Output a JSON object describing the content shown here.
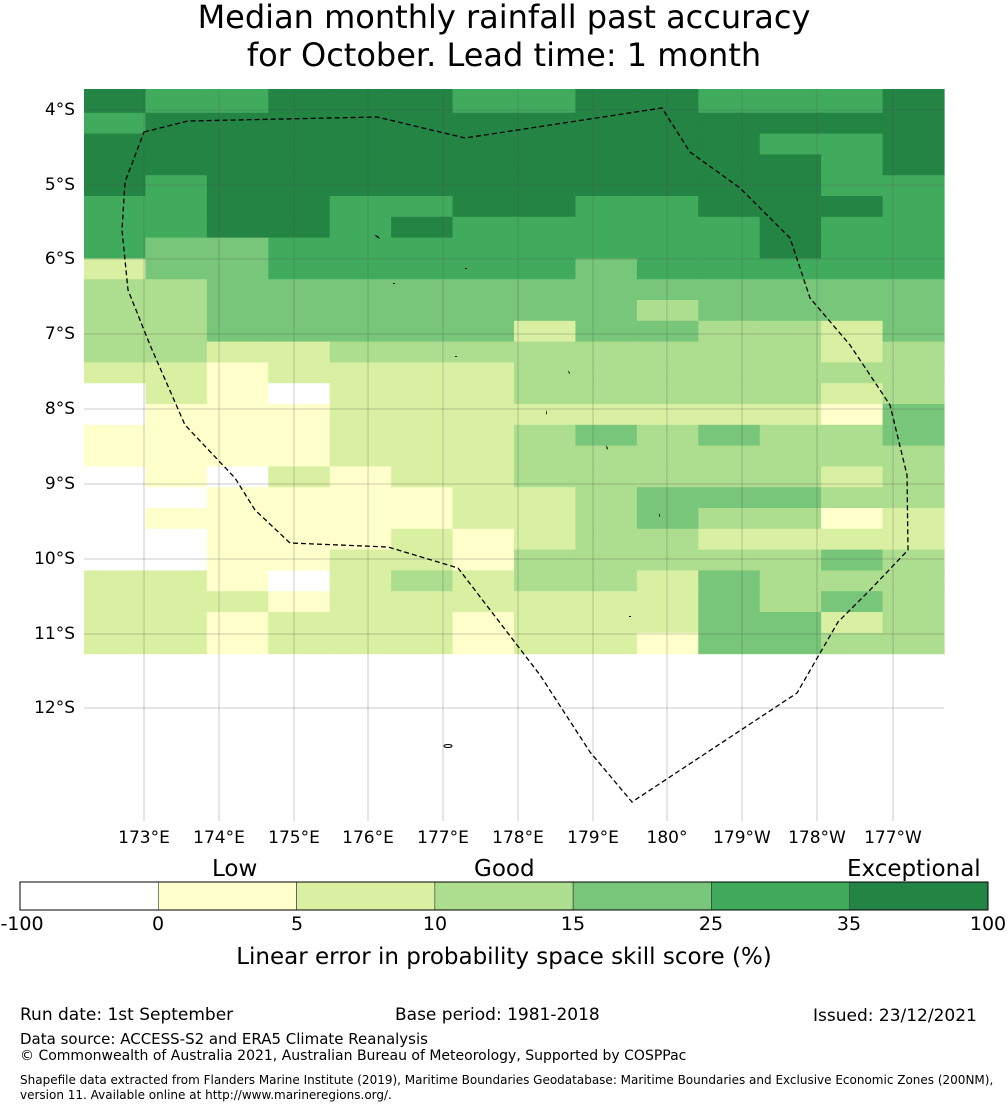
{
  "title": {
    "line1": "Median monthly rainfall past accuracy",
    "line2": "for October. Lead time: 1 month"
  },
  "map": {
    "lat_labels": [
      "4°S",
      "5°S",
      "6°S",
      "7°S",
      "8°S",
      "9°S",
      "10°S",
      "11°S",
      "12°S"
    ],
    "lon_labels": [
      "173°E",
      "174°E",
      "175°E",
      "176°E",
      "177°E",
      "178°E",
      "179°E",
      "180°",
      "179°W",
      "178°W",
      "177°W"
    ],
    "grid": [
      [
        6,
        5,
        5,
        6,
        6,
        6,
        5,
        5,
        6,
        6,
        5,
        5,
        5,
        6
      ],
      [
        5,
        6,
        6,
        6,
        6,
        6,
        6,
        6,
        6,
        6,
        6,
        6,
        6,
        6
      ],
      [
        6,
        6,
        6,
        6,
        6,
        6,
        6,
        6,
        6,
        6,
        6,
        5,
        5,
        6
      ],
      [
        6,
        6,
        6,
        6,
        6,
        6,
        6,
        6,
        6,
        6,
        6,
        6,
        5,
        6
      ],
      [
        6,
        5,
        6,
        6,
        6,
        6,
        6,
        6,
        6,
        6,
        6,
        6,
        5,
        5
      ],
      [
        5,
        5,
        6,
        6,
        5,
        5,
        6,
        6,
        5,
        5,
        6,
        6,
        6,
        5
      ],
      [
        5,
        5,
        6,
        6,
        5,
        6,
        5,
        5,
        5,
        5,
        5,
        6,
        5,
        5
      ],
      [
        5,
        4,
        4,
        5,
        5,
        5,
        5,
        5,
        5,
        5,
        5,
        6,
        5,
        5
      ],
      [
        2,
        4,
        4,
        5,
        5,
        5,
        5,
        5,
        4,
        5,
        5,
        5,
        5,
        5
      ],
      [
        3,
        3,
        4,
        4,
        4,
        4,
        4,
        4,
        4,
        4,
        4,
        4,
        4,
        4
      ],
      [
        3,
        3,
        4,
        4,
        4,
        4,
        4,
        4,
        4,
        3,
        4,
        4,
        4,
        4
      ],
      [
        3,
        3,
        4,
        4,
        4,
        4,
        4,
        2,
        4,
        4,
        3,
        3,
        2,
        4
      ],
      [
        3,
        3,
        2,
        2,
        3,
        3,
        3,
        3,
        3,
        3,
        3,
        3,
        2,
        3
      ],
      [
        2,
        2,
        1,
        2,
        2,
        2,
        2,
        3,
        3,
        3,
        3,
        3,
        3,
        3
      ],
      [
        0,
        2,
        1,
        0,
        2,
        2,
        2,
        3,
        3,
        3,
        3,
        3,
        2,
        3
      ],
      [
        0,
        1,
        1,
        1,
        2,
        2,
        2,
        2,
        2,
        2,
        2,
        2,
        1,
        4
      ],
      [
        1,
        1,
        1,
        1,
        2,
        2,
        2,
        3,
        4,
        3,
        4,
        3,
        3,
        4
      ],
      [
        1,
        1,
        1,
        1,
        2,
        2,
        2,
        3,
        3,
        3,
        3,
        3,
        3,
        3
      ],
      [
        0,
        1,
        0,
        2,
        1,
        2,
        2,
        3,
        3,
        3,
        3,
        3,
        2,
        3
      ],
      [
        0,
        0,
        1,
        1,
        1,
        1,
        2,
        2,
        3,
        4,
        4,
        4,
        3,
        3
      ],
      [
        0,
        1,
        1,
        1,
        1,
        1,
        2,
        2,
        3,
        4,
        3,
        3,
        1,
        2
      ],
      [
        0,
        0,
        1,
        1,
        1,
        2,
        1,
        2,
        3,
        3,
        2,
        2,
        2,
        2
      ],
      [
        0,
        0,
        1,
        1,
        2,
        2,
        1,
        3,
        3,
        3,
        3,
        3,
        4,
        3
      ],
      [
        2,
        2,
        1,
        0,
        2,
        3,
        2,
        3,
        3,
        2,
        4,
        3,
        3,
        3
      ],
      [
        2,
        2,
        2,
        1,
        2,
        2,
        2,
        2,
        2,
        2,
        4,
        3,
        4,
        3
      ],
      [
        2,
        2,
        1,
        2,
        2,
        2,
        1,
        2,
        2,
        2,
        4,
        4,
        2,
        3
      ],
      [
        2,
        2,
        1,
        2,
        2,
        2,
        1,
        2,
        2,
        1,
        4,
        4,
        3,
        3
      ]
    ]
  },
  "colorbar": {
    "categories": [
      "Low",
      "Good",
      "Exceptional"
    ],
    "ticks": [
      "-100",
      "0",
      "5",
      "10",
      "15",
      "25",
      "35",
      "100"
    ],
    "colors": [
      "#ffffff",
      "#ffffcc",
      "#d9f0a3",
      "#addd8e",
      "#78c679",
      "#41ab5d",
      "#238443"
    ],
    "title": "Linear error in probability space skill score (%)"
  },
  "footer": {
    "run_date": "Run date: 1st September",
    "base_period": "Base period: 1981-2018",
    "issued": "Issued: 23/12/2021",
    "data_source": "Data source: ACCESS-S2 and ERA5 Climate Reanalysis",
    "copyright": "© Commonwealth of Australia 2021, Australian Bureau of Meteorology, Supported by COSPPac",
    "shapefile_line1": "Shapefile data extracted from Flanders Marine Institute (2019), Maritime Boundaries Geodatabase: Maritime Boundaries and Exclusive Economic Zones (200NM),",
    "shapefile_line2": "version 11. Available online at http://www.marineregions.org/."
  }
}
